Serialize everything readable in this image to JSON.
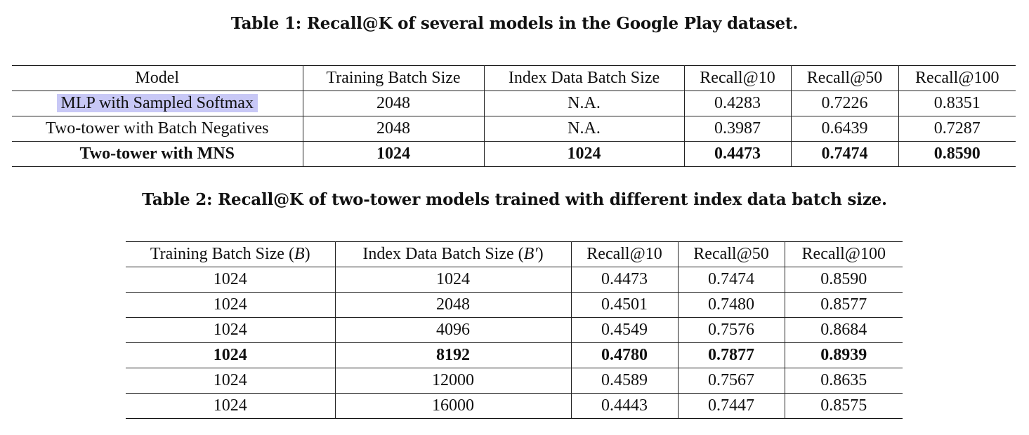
{
  "table1": {
    "caption": "Table 1: Recall@K of several models in the Google Play dataset.",
    "headers": [
      "Model",
      "Training Batch Size",
      "Index Data Batch Size",
      "Recall@10",
      "Recall@50",
      "Recall@100"
    ],
    "rows": [
      {
        "model": "MLP with Sampled Softmax",
        "training_batch_size": "2048",
        "index_batch_size": "N.A.",
        "recall10": "0.4283",
        "recall50": "0.7226",
        "recall100": "0.8351",
        "highlighted": true
      },
      {
        "model": "Two-tower with Batch Negatives",
        "training_batch_size": "2048",
        "index_batch_size": "N.A.",
        "recall10": "0.3987",
        "recall50": "0.6439",
        "recall100": "0.7287"
      },
      {
        "model": "Two-tower with MNS",
        "training_batch_size": "1024",
        "index_batch_size": "1024",
        "recall10": "0.4473",
        "recall50": "0.7474",
        "recall100": "0.8590",
        "bold": true
      }
    ]
  },
  "table2": {
    "caption": "Table 2: Recall@K of two-tower models trained with different index data batch size.",
    "headers": {
      "training": "Training Batch Size (",
      "training_sym": "B",
      "training_close": ")",
      "index": "Index Data Batch Size (",
      "index_sym": "B′",
      "index_close": ")",
      "recall10": "Recall@10",
      "recall50": "Recall@50",
      "recall100": "Recall@100"
    },
    "rows": [
      {
        "training": "1024",
        "index": "1024",
        "recall10": "0.4473",
        "recall50": "0.7474",
        "recall100": "0.8590"
      },
      {
        "training": "1024",
        "index": "2048",
        "recall10": "0.4501",
        "recall50": "0.7480",
        "recall100": "0.8577"
      },
      {
        "training": "1024",
        "index": "4096",
        "recall10": "0.4549",
        "recall50": "0.7576",
        "recall100": "0.8684"
      },
      {
        "training": "1024",
        "index": "8192",
        "recall10": "0.4780",
        "recall50": "0.7877",
        "recall100": "0.8939",
        "bold": true
      },
      {
        "training": "1024",
        "index": "12000",
        "recall10": "0.4589",
        "recall50": "0.7567",
        "recall100": "0.8635"
      },
      {
        "training": "1024",
        "index": "16000",
        "recall10": "0.4443",
        "recall50": "0.7447",
        "recall100": "0.8575"
      }
    ]
  },
  "colors": {
    "highlight": "#c8c8f6",
    "text": "#111111"
  }
}
